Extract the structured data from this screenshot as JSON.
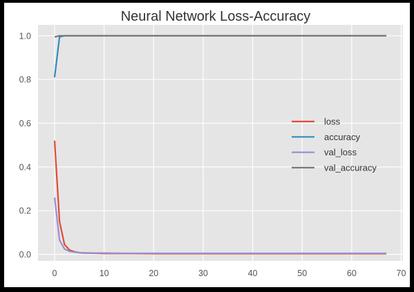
{
  "chart_data": {
    "type": "line",
    "title": "Neural Network Loss-Accuracy",
    "xlabel": "",
    "ylabel": "",
    "xlim": [
      -3.35,
      70.35
    ],
    "ylim": [
      -0.03,
      1.05
    ],
    "xticks": [
      0,
      10,
      20,
      30,
      40,
      50,
      60,
      70
    ],
    "yticks": [
      0.0,
      0.2,
      0.4,
      0.6,
      0.8,
      1.0
    ],
    "ytick_labels": [
      "0.0",
      "0.2",
      "0.4",
      "0.6",
      "0.8",
      "1.0"
    ],
    "grid": true,
    "background": "#e5e5e5",
    "legend_position": "center-right",
    "x": [
      0,
      1,
      2,
      3,
      4,
      5,
      6,
      8,
      10,
      15,
      20,
      30,
      40,
      50,
      60,
      67
    ],
    "series": [
      {
        "name": "loss",
        "color": "#e24a33",
        "values": [
          0.52,
          0.15,
          0.045,
          0.02,
          0.012,
          0.008,
          0.006,
          0.005,
          0.004,
          0.004,
          0.003,
          0.003,
          0.003,
          0.003,
          0.003,
          0.003
        ]
      },
      {
        "name": "accuracy",
        "color": "#348abd",
        "values": [
          0.81,
          0.995,
          1.0,
          1.0,
          1.0,
          1.0,
          1.0,
          1.0,
          1.0,
          1.0,
          1.0,
          1.0,
          1.0,
          1.0,
          1.0,
          1.0
        ]
      },
      {
        "name": "val_loss",
        "color": "#988ed5",
        "values": [
          0.26,
          0.065,
          0.025,
          0.014,
          0.01,
          0.008,
          0.007,
          0.006,
          0.006,
          0.005,
          0.005,
          0.005,
          0.005,
          0.005,
          0.005,
          0.005
        ]
      },
      {
        "name": "val_accuracy",
        "color": "#777777",
        "values": [
          0.995,
          1.0,
          1.0,
          1.0,
          1.0,
          1.0,
          1.0,
          1.0,
          1.0,
          1.0,
          1.0,
          1.0,
          1.0,
          1.0,
          1.0,
          1.0
        ]
      }
    ]
  }
}
